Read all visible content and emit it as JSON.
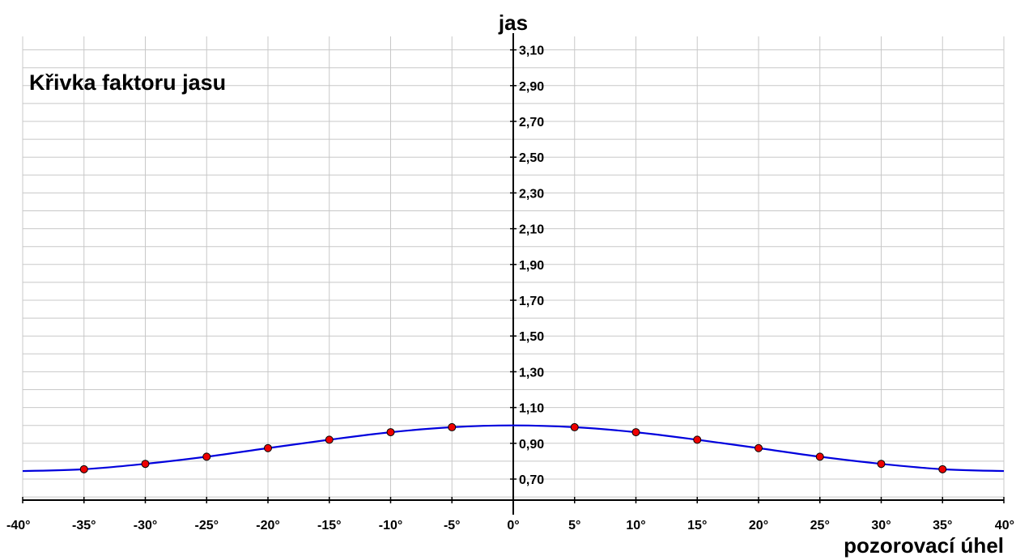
{
  "chart_data": {
    "type": "line",
    "title": "Křivka faktoru jasu",
    "xlabel": "pozorovací úhel",
    "ylabel": "jas",
    "xlim": [
      -40,
      40
    ],
    "ylim": [
      0.6,
      3.2
    ],
    "grid": true,
    "x_ticks": [
      -40,
      -35,
      -30,
      -25,
      -20,
      -15,
      -10,
      -5,
      0,
      5,
      10,
      15,
      20,
      25,
      30,
      35,
      40
    ],
    "x_tick_labels": [
      "-40°",
      "-35°",
      "-30°",
      "-25°",
      "-20°",
      "-15°",
      "-10°",
      "-5°",
      "0°",
      "5°",
      "10°",
      "15°",
      "20°",
      "25°",
      "30°",
      "35°",
      "40°"
    ],
    "y_ticks": [
      0.7,
      0.9,
      1.1,
      1.3,
      1.5,
      1.7,
      1.9,
      2.1,
      2.3,
      2.5,
      2.7,
      2.9,
      3.1
    ],
    "y_tick_labels": [
      "0,70",
      "0,90",
      "1,10",
      "1,30",
      "1,50",
      "1,70",
      "1,90",
      "2,10",
      "2,30",
      "2,50",
      "2,70",
      "2,90",
      "3,10"
    ],
    "series": [
      {
        "color": "#0000dd",
        "curve": {
          "x": [
            -40,
            -35,
            -30,
            -25,
            -20,
            -15,
            -10,
            -5,
            0,
            5,
            10,
            15,
            20,
            25,
            30,
            35,
            40
          ],
          "y": [
            0.745,
            0.755,
            0.785,
            0.825,
            0.873,
            0.92,
            0.962,
            0.99,
            1.0,
            0.99,
            0.962,
            0.92,
            0.873,
            0.825,
            0.785,
            0.755,
            0.745
          ]
        },
        "points": {
          "color": "#ee0000",
          "x": [
            -35,
            -30,
            -25,
            -20,
            -15,
            -10,
            -5,
            5,
            10,
            15,
            20,
            25,
            30,
            35
          ],
          "y": [
            0.755,
            0.785,
            0.825,
            0.873,
            0.92,
            0.962,
            0.99,
            0.99,
            0.962,
            0.92,
            0.873,
            0.825,
            0.785,
            0.755
          ]
        }
      }
    ]
  }
}
